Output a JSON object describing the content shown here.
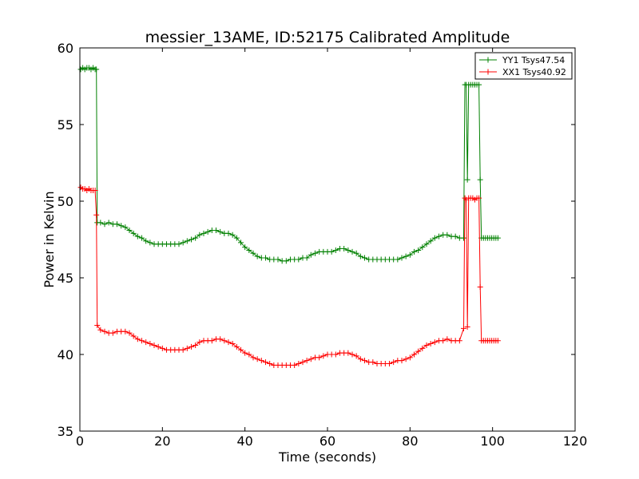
{
  "chart_data": {
    "type": "line",
    "title": "messier_13AME, ID:52175 Calibrated Amplitude",
    "xlabel": "Time (seconds)",
    "ylabel": "Power in Kelvin",
    "xlim": [
      0,
      120
    ],
    "ylim": [
      35,
      60
    ],
    "xticks": [
      0,
      20,
      40,
      60,
      80,
      100,
      120
    ],
    "yticks": [
      35,
      40,
      45,
      50,
      55,
      60
    ],
    "grid": false,
    "legend_position": "top-right",
    "marker": "+",
    "series": [
      {
        "name": "YY1 Tsys47.54",
        "color": "#008000",
        "points": [
          [
            0.2,
            58.6
          ],
          [
            0.7,
            58.7
          ],
          [
            1.2,
            58.6
          ],
          [
            1.7,
            58.7
          ],
          [
            2.2,
            58.7
          ],
          [
            2.7,
            58.6
          ],
          [
            3.2,
            58.7
          ],
          [
            3.7,
            58.6
          ],
          [
            4.0,
            58.6
          ],
          [
            4.2,
            48.6
          ],
          [
            5,
            48.6
          ],
          [
            6,
            48.5
          ],
          [
            7,
            48.6
          ],
          [
            8,
            48.5
          ],
          [
            9,
            48.5
          ],
          [
            10,
            48.4
          ],
          [
            11,
            48.3
          ],
          [
            12,
            48.1
          ],
          [
            13,
            47.9
          ],
          [
            14,
            47.7
          ],
          [
            15,
            47.6
          ],
          [
            16,
            47.4
          ],
          [
            17,
            47.3
          ],
          [
            18,
            47.2
          ],
          [
            19,
            47.2
          ],
          [
            20,
            47.2
          ],
          [
            21,
            47.2
          ],
          [
            22,
            47.2
          ],
          [
            23,
            47.2
          ],
          [
            24,
            47.2
          ],
          [
            25,
            47.3
          ],
          [
            26,
            47.4
          ],
          [
            27,
            47.5
          ],
          [
            28,
            47.6
          ],
          [
            29,
            47.8
          ],
          [
            30,
            47.9
          ],
          [
            31,
            48.0
          ],
          [
            32,
            48.1
          ],
          [
            33,
            48.1
          ],
          [
            34,
            48.0
          ],
          [
            35,
            47.9
          ],
          [
            36,
            47.9
          ],
          [
            37,
            47.8
          ],
          [
            38,
            47.6
          ],
          [
            39,
            47.3
          ],
          [
            40,
            47.0
          ],
          [
            41,
            46.8
          ],
          [
            42,
            46.6
          ],
          [
            43,
            46.4
          ],
          [
            44,
            46.3
          ],
          [
            45,
            46.3
          ],
          [
            46,
            46.2
          ],
          [
            47,
            46.2
          ],
          [
            48,
            46.2
          ],
          [
            49,
            46.1
          ],
          [
            50,
            46.1
          ],
          [
            51,
            46.2
          ],
          [
            52,
            46.2
          ],
          [
            53,
            46.2
          ],
          [
            54,
            46.3
          ],
          [
            55,
            46.3
          ],
          [
            56,
            46.5
          ],
          [
            57,
            46.6
          ],
          [
            58,
            46.7
          ],
          [
            59,
            46.7
          ],
          [
            60,
            46.7
          ],
          [
            61,
            46.7
          ],
          [
            62,
            46.8
          ],
          [
            63,
            46.9
          ],
          [
            64,
            46.9
          ],
          [
            65,
            46.8
          ],
          [
            66,
            46.7
          ],
          [
            67,
            46.6
          ],
          [
            68,
            46.4
          ],
          [
            69,
            46.3
          ],
          [
            70,
            46.2
          ],
          [
            71,
            46.2
          ],
          [
            72,
            46.2
          ],
          [
            73,
            46.2
          ],
          [
            74,
            46.2
          ],
          [
            75,
            46.2
          ],
          [
            76,
            46.2
          ],
          [
            77,
            46.2
          ],
          [
            78,
            46.3
          ],
          [
            79,
            46.4
          ],
          [
            80,
            46.5
          ],
          [
            81,
            46.7
          ],
          [
            82,
            46.8
          ],
          [
            83,
            47.0
          ],
          [
            84,
            47.2
          ],
          [
            85,
            47.4
          ],
          [
            86,
            47.6
          ],
          [
            87,
            47.7
          ],
          [
            88,
            47.8
          ],
          [
            89,
            47.8
          ],
          [
            90,
            47.7
          ],
          [
            91,
            47.7
          ],
          [
            92,
            47.6
          ],
          [
            93.0,
            47.6
          ],
          [
            93.3,
            57.6
          ],
          [
            93.6,
            57.6
          ],
          [
            93.9,
            51.4
          ],
          [
            94.2,
            57.6
          ],
          [
            94.7,
            57.6
          ],
          [
            95.2,
            57.6
          ],
          [
            95.7,
            57.6
          ],
          [
            96.2,
            57.6
          ],
          [
            96.7,
            57.6
          ],
          [
            97.0,
            51.4
          ],
          [
            97.3,
            47.6
          ],
          [
            97.8,
            47.6
          ],
          [
            98.3,
            47.6
          ],
          [
            98.8,
            47.6
          ],
          [
            99.3,
            47.6
          ],
          [
            99.8,
            47.6
          ],
          [
            100.3,
            47.6
          ],
          [
            100.8,
            47.6
          ],
          [
            101.3,
            47.6
          ]
        ]
      },
      {
        "name": "XX1 Tsys40.92",
        "color": "#ff0000",
        "points": [
          [
            0.2,
            50.9
          ],
          [
            0.7,
            50.8
          ],
          [
            1.2,
            50.8
          ],
          [
            1.7,
            50.7
          ],
          [
            2.2,
            50.8
          ],
          [
            2.7,
            50.7
          ],
          [
            3.2,
            50.7
          ],
          [
            3.7,
            50.7
          ],
          [
            4.0,
            49.1
          ],
          [
            4.2,
            41.9
          ],
          [
            5,
            41.6
          ],
          [
            6,
            41.5
          ],
          [
            7,
            41.4
          ],
          [
            8,
            41.4
          ],
          [
            9,
            41.5
          ],
          [
            10,
            41.5
          ],
          [
            11,
            41.5
          ],
          [
            12,
            41.4
          ],
          [
            13,
            41.2
          ],
          [
            14,
            41.0
          ],
          [
            15,
            40.9
          ],
          [
            16,
            40.8
          ],
          [
            17,
            40.7
          ],
          [
            18,
            40.6
          ],
          [
            19,
            40.5
          ],
          [
            20,
            40.4
          ],
          [
            21,
            40.3
          ],
          [
            22,
            40.3
          ],
          [
            23,
            40.3
          ],
          [
            24,
            40.3
          ],
          [
            25,
            40.3
          ],
          [
            26,
            40.4
          ],
          [
            27,
            40.5
          ],
          [
            28,
            40.6
          ],
          [
            29,
            40.8
          ],
          [
            30,
            40.9
          ],
          [
            31,
            40.9
          ],
          [
            32,
            40.9
          ],
          [
            33,
            41.0
          ],
          [
            34,
            41.0
          ],
          [
            35,
            40.9
          ],
          [
            36,
            40.8
          ],
          [
            37,
            40.7
          ],
          [
            38,
            40.5
          ],
          [
            39,
            40.3
          ],
          [
            40,
            40.1
          ],
          [
            41,
            40.0
          ],
          [
            42,
            39.8
          ],
          [
            43,
            39.7
          ],
          [
            44,
            39.6
          ],
          [
            45,
            39.5
          ],
          [
            46,
            39.4
          ],
          [
            47,
            39.3
          ],
          [
            48,
            39.3
          ],
          [
            49,
            39.3
          ],
          [
            50,
            39.3
          ],
          [
            51,
            39.3
          ],
          [
            52,
            39.3
          ],
          [
            53,
            39.4
          ],
          [
            54,
            39.5
          ],
          [
            55,
            39.6
          ],
          [
            56,
            39.7
          ],
          [
            57,
            39.8
          ],
          [
            58,
            39.8
          ],
          [
            59,
            39.9
          ],
          [
            60,
            40.0
          ],
          [
            61,
            40.0
          ],
          [
            62,
            40.0
          ],
          [
            63,
            40.1
          ],
          [
            64,
            40.1
          ],
          [
            65,
            40.1
          ],
          [
            66,
            40.0
          ],
          [
            67,
            39.9
          ],
          [
            68,
            39.7
          ],
          [
            69,
            39.6
          ],
          [
            70,
            39.5
          ],
          [
            71,
            39.5
          ],
          [
            72,
            39.4
          ],
          [
            73,
            39.4
          ],
          [
            74,
            39.4
          ],
          [
            75,
            39.4
          ],
          [
            76,
            39.5
          ],
          [
            77,
            39.6
          ],
          [
            78,
            39.6
          ],
          [
            79,
            39.7
          ],
          [
            80,
            39.8
          ],
          [
            81,
            40.0
          ],
          [
            82,
            40.2
          ],
          [
            83,
            40.4
          ],
          [
            84,
            40.6
          ],
          [
            85,
            40.7
          ],
          [
            86,
            40.8
          ],
          [
            87,
            40.9
          ],
          [
            88,
            40.9
          ],
          [
            89,
            41.0
          ],
          [
            90,
            40.9
          ],
          [
            91,
            40.9
          ],
          [
            92,
            40.9
          ],
          [
            93.0,
            41.7
          ],
          [
            93.3,
            50.2
          ],
          [
            93.6,
            50.1
          ],
          [
            93.9,
            41.8
          ],
          [
            94.2,
            50.2
          ],
          [
            94.7,
            50.2
          ],
          [
            95.2,
            50.2
          ],
          [
            95.7,
            50.1
          ],
          [
            96.2,
            50.2
          ],
          [
            96.7,
            50.2
          ],
          [
            97.0,
            44.4
          ],
          [
            97.3,
            40.9
          ],
          [
            97.8,
            40.9
          ],
          [
            98.3,
            40.9
          ],
          [
            98.8,
            40.9
          ],
          [
            99.3,
            40.9
          ],
          [
            99.8,
            40.9
          ],
          [
            100.3,
            40.9
          ],
          [
            100.8,
            40.9
          ],
          [
            101.3,
            40.9
          ]
        ]
      }
    ]
  }
}
